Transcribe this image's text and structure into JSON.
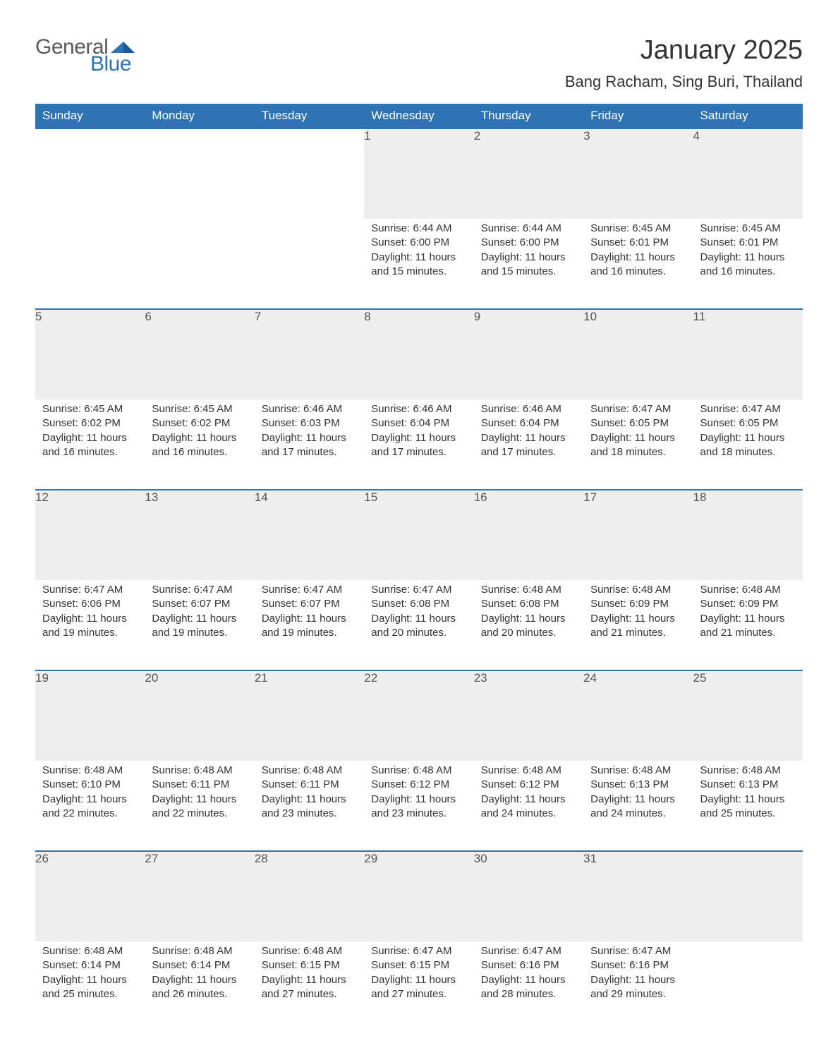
{
  "logo": {
    "general": "General",
    "blue": "Blue",
    "tri_color": "#2e74b5"
  },
  "header": {
    "title": "January 2025",
    "location": "Bang Racham, Sing Buri, Thailand"
  },
  "colors": {
    "header_bg": "#2e74b5",
    "header_fg": "#ffffff",
    "daynum_bg": "#eeeeee",
    "border": "#2e74b5",
    "text": "#333333"
  },
  "day_names": [
    "Sunday",
    "Monday",
    "Tuesday",
    "Wednesday",
    "Thursday",
    "Friday",
    "Saturday"
  ],
  "weeks": [
    [
      null,
      null,
      null,
      {
        "n": "1",
        "sr": "Sunrise: 6:44 AM",
        "ss": "Sunset: 6:00 PM",
        "d1": "Daylight: 11 hours",
        "d2": "and 15 minutes."
      },
      {
        "n": "2",
        "sr": "Sunrise: 6:44 AM",
        "ss": "Sunset: 6:00 PM",
        "d1": "Daylight: 11 hours",
        "d2": "and 15 minutes."
      },
      {
        "n": "3",
        "sr": "Sunrise: 6:45 AM",
        "ss": "Sunset: 6:01 PM",
        "d1": "Daylight: 11 hours",
        "d2": "and 16 minutes."
      },
      {
        "n": "4",
        "sr": "Sunrise: 6:45 AM",
        "ss": "Sunset: 6:01 PM",
        "d1": "Daylight: 11 hours",
        "d2": "and 16 minutes."
      }
    ],
    [
      {
        "n": "5",
        "sr": "Sunrise: 6:45 AM",
        "ss": "Sunset: 6:02 PM",
        "d1": "Daylight: 11 hours",
        "d2": "and 16 minutes."
      },
      {
        "n": "6",
        "sr": "Sunrise: 6:45 AM",
        "ss": "Sunset: 6:02 PM",
        "d1": "Daylight: 11 hours",
        "d2": "and 16 minutes."
      },
      {
        "n": "7",
        "sr": "Sunrise: 6:46 AM",
        "ss": "Sunset: 6:03 PM",
        "d1": "Daylight: 11 hours",
        "d2": "and 17 minutes."
      },
      {
        "n": "8",
        "sr": "Sunrise: 6:46 AM",
        "ss": "Sunset: 6:04 PM",
        "d1": "Daylight: 11 hours",
        "d2": "and 17 minutes."
      },
      {
        "n": "9",
        "sr": "Sunrise: 6:46 AM",
        "ss": "Sunset: 6:04 PM",
        "d1": "Daylight: 11 hours",
        "d2": "and 17 minutes."
      },
      {
        "n": "10",
        "sr": "Sunrise: 6:47 AM",
        "ss": "Sunset: 6:05 PM",
        "d1": "Daylight: 11 hours",
        "d2": "and 18 minutes."
      },
      {
        "n": "11",
        "sr": "Sunrise: 6:47 AM",
        "ss": "Sunset: 6:05 PM",
        "d1": "Daylight: 11 hours",
        "d2": "and 18 minutes."
      }
    ],
    [
      {
        "n": "12",
        "sr": "Sunrise: 6:47 AM",
        "ss": "Sunset: 6:06 PM",
        "d1": "Daylight: 11 hours",
        "d2": "and 19 minutes."
      },
      {
        "n": "13",
        "sr": "Sunrise: 6:47 AM",
        "ss": "Sunset: 6:07 PM",
        "d1": "Daylight: 11 hours",
        "d2": "and 19 minutes."
      },
      {
        "n": "14",
        "sr": "Sunrise: 6:47 AM",
        "ss": "Sunset: 6:07 PM",
        "d1": "Daylight: 11 hours",
        "d2": "and 19 minutes."
      },
      {
        "n": "15",
        "sr": "Sunrise: 6:47 AM",
        "ss": "Sunset: 6:08 PM",
        "d1": "Daylight: 11 hours",
        "d2": "and 20 minutes."
      },
      {
        "n": "16",
        "sr": "Sunrise: 6:48 AM",
        "ss": "Sunset: 6:08 PM",
        "d1": "Daylight: 11 hours",
        "d2": "and 20 minutes."
      },
      {
        "n": "17",
        "sr": "Sunrise: 6:48 AM",
        "ss": "Sunset: 6:09 PM",
        "d1": "Daylight: 11 hours",
        "d2": "and 21 minutes."
      },
      {
        "n": "18",
        "sr": "Sunrise: 6:48 AM",
        "ss": "Sunset: 6:09 PM",
        "d1": "Daylight: 11 hours",
        "d2": "and 21 minutes."
      }
    ],
    [
      {
        "n": "19",
        "sr": "Sunrise: 6:48 AM",
        "ss": "Sunset: 6:10 PM",
        "d1": "Daylight: 11 hours",
        "d2": "and 22 minutes."
      },
      {
        "n": "20",
        "sr": "Sunrise: 6:48 AM",
        "ss": "Sunset: 6:11 PM",
        "d1": "Daylight: 11 hours",
        "d2": "and 22 minutes."
      },
      {
        "n": "21",
        "sr": "Sunrise: 6:48 AM",
        "ss": "Sunset: 6:11 PM",
        "d1": "Daylight: 11 hours",
        "d2": "and 23 minutes."
      },
      {
        "n": "22",
        "sr": "Sunrise: 6:48 AM",
        "ss": "Sunset: 6:12 PM",
        "d1": "Daylight: 11 hours",
        "d2": "and 23 minutes."
      },
      {
        "n": "23",
        "sr": "Sunrise: 6:48 AM",
        "ss": "Sunset: 6:12 PM",
        "d1": "Daylight: 11 hours",
        "d2": "and 24 minutes."
      },
      {
        "n": "24",
        "sr": "Sunrise: 6:48 AM",
        "ss": "Sunset: 6:13 PM",
        "d1": "Daylight: 11 hours",
        "d2": "and 24 minutes."
      },
      {
        "n": "25",
        "sr": "Sunrise: 6:48 AM",
        "ss": "Sunset: 6:13 PM",
        "d1": "Daylight: 11 hours",
        "d2": "and 25 minutes."
      }
    ],
    [
      {
        "n": "26",
        "sr": "Sunrise: 6:48 AM",
        "ss": "Sunset: 6:14 PM",
        "d1": "Daylight: 11 hours",
        "d2": "and 25 minutes."
      },
      {
        "n": "27",
        "sr": "Sunrise: 6:48 AM",
        "ss": "Sunset: 6:14 PM",
        "d1": "Daylight: 11 hours",
        "d2": "and 26 minutes."
      },
      {
        "n": "28",
        "sr": "Sunrise: 6:48 AM",
        "ss": "Sunset: 6:15 PM",
        "d1": "Daylight: 11 hours",
        "d2": "and 27 minutes."
      },
      {
        "n": "29",
        "sr": "Sunrise: 6:47 AM",
        "ss": "Sunset: 6:15 PM",
        "d1": "Daylight: 11 hours",
        "d2": "and 27 minutes."
      },
      {
        "n": "30",
        "sr": "Sunrise: 6:47 AM",
        "ss": "Sunset: 6:16 PM",
        "d1": "Daylight: 11 hours",
        "d2": "and 28 minutes."
      },
      {
        "n": "31",
        "sr": "Sunrise: 6:47 AM",
        "ss": "Sunset: 6:16 PM",
        "d1": "Daylight: 11 hours",
        "d2": "and 29 minutes."
      },
      null
    ]
  ]
}
